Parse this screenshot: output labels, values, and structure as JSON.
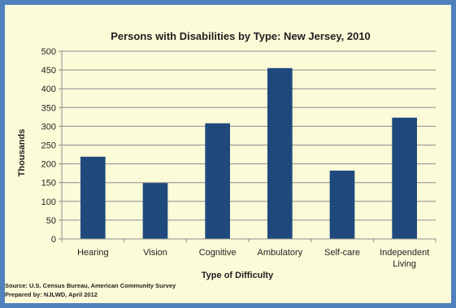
{
  "colors": {
    "border": "#4f81bd",
    "background": "#fbfbd8",
    "bar": "#1f497d",
    "grid": "#8c8c8c",
    "text": "#1f1f1f"
  },
  "chart_data": {
    "type": "bar",
    "title": "Persons with Disabilities by Type: New Jersey, 2010",
    "xlabel": "Type of Difficulty",
    "ylabel": "Thousands",
    "categories": [
      "Hearing",
      "Vision",
      "Cognitive",
      "Ambulatory",
      "Self-care",
      "Independent Living"
    ],
    "category_lines": [
      [
        "Hearing"
      ],
      [
        "Vision"
      ],
      [
        "Cognitive"
      ],
      [
        "Ambulatory"
      ],
      [
        "Self-care"
      ],
      [
        "Independent",
        "Living"
      ]
    ],
    "values": [
      219,
      149,
      308,
      455,
      182,
      323
    ],
    "ylim": [
      0,
      500
    ],
    "yticks": [
      0,
      50,
      100,
      150,
      200,
      250,
      300,
      350,
      400,
      450,
      500
    ],
    "grid": true,
    "legend": "none"
  },
  "footer": {
    "source": "Source: U.S. Census Bureau, American Community Survey",
    "prepared": "Prepared by: NJLWD, April 2012"
  }
}
